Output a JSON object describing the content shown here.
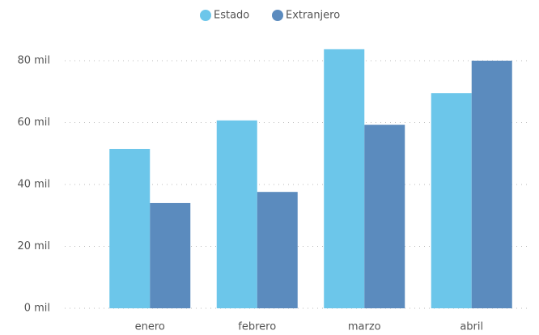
{
  "chart_data": {
    "type": "bar",
    "categories": [
      "enero",
      "febrero",
      "marzo",
      "abril"
    ],
    "series": [
      {
        "name": "Estado",
        "color": "#6cc6ea",
        "values": [
          51500,
          60700,
          83700,
          69500
        ]
      },
      {
        "name": "Extranjero",
        "color": "#5b8bbe",
        "values": [
          34000,
          37600,
          59300,
          80000
        ]
      }
    ],
    "ylim": [
      0,
      90000
    ],
    "yticks": [
      {
        "value": 0,
        "label": "0 mil"
      },
      {
        "value": 20000,
        "label": "20 mil"
      },
      {
        "value": 40000,
        "label": "40 mil"
      },
      {
        "value": 60000,
        "label": "60 mil"
      },
      {
        "value": 80000,
        "label": "80 mil"
      }
    ],
    "grid": true,
    "legend": "top"
  }
}
